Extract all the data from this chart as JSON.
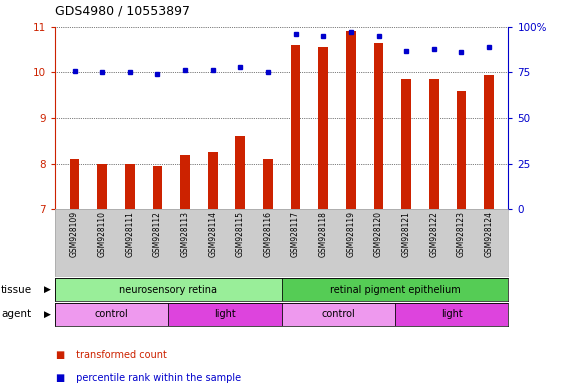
{
  "title": "GDS4980 / 10553897",
  "samples": [
    "GSM928109",
    "GSM928110",
    "GSM928111",
    "GSM928112",
    "GSM928113",
    "GSM928114",
    "GSM928115",
    "GSM928116",
    "GSM928117",
    "GSM928118",
    "GSM928119",
    "GSM928120",
    "GSM928121",
    "GSM928122",
    "GSM928123",
    "GSM928124"
  ],
  "bar_values": [
    8.1,
    8.0,
    8.0,
    7.95,
    8.2,
    8.25,
    8.6,
    8.1,
    10.6,
    10.55,
    10.9,
    10.65,
    9.85,
    9.85,
    9.6,
    9.95
  ],
  "dot_values": [
    76,
    75,
    75,
    74,
    76.5,
    76.5,
    78,
    75.5,
    96,
    95,
    97,
    95,
    87,
    88,
    86,
    89
  ],
  "ylim_left": [
    7,
    11
  ],
  "ylim_right": [
    0,
    100
  ],
  "yticks_left": [
    7,
    8,
    9,
    10,
    11
  ],
  "yticks_right": [
    0,
    25,
    50,
    75,
    100
  ],
  "ytick_labels_right": [
    "0",
    "25",
    "50",
    "75",
    "100%"
  ],
  "bar_color": "#cc2200",
  "dot_color": "#0000cc",
  "tissue_groups": [
    {
      "label": "neurosensory retina",
      "start": 0,
      "end": 8,
      "color": "#99ee99"
    },
    {
      "label": "retinal pigment epithelium",
      "start": 8,
      "end": 16,
      "color": "#55cc55"
    }
  ],
  "agent_groups": [
    {
      "label": "control",
      "start": 0,
      "end": 4,
      "color": "#ee99ee"
    },
    {
      "label": "light",
      "start": 4,
      "end": 8,
      "color": "#dd44dd"
    },
    {
      "label": "control",
      "start": 8,
      "end": 12,
      "color": "#ee99ee"
    },
    {
      "label": "light",
      "start": 12,
      "end": 16,
      "color": "#dd44dd"
    }
  ],
  "tick_area_color": "#cccccc",
  "background_color": "#ffffff"
}
